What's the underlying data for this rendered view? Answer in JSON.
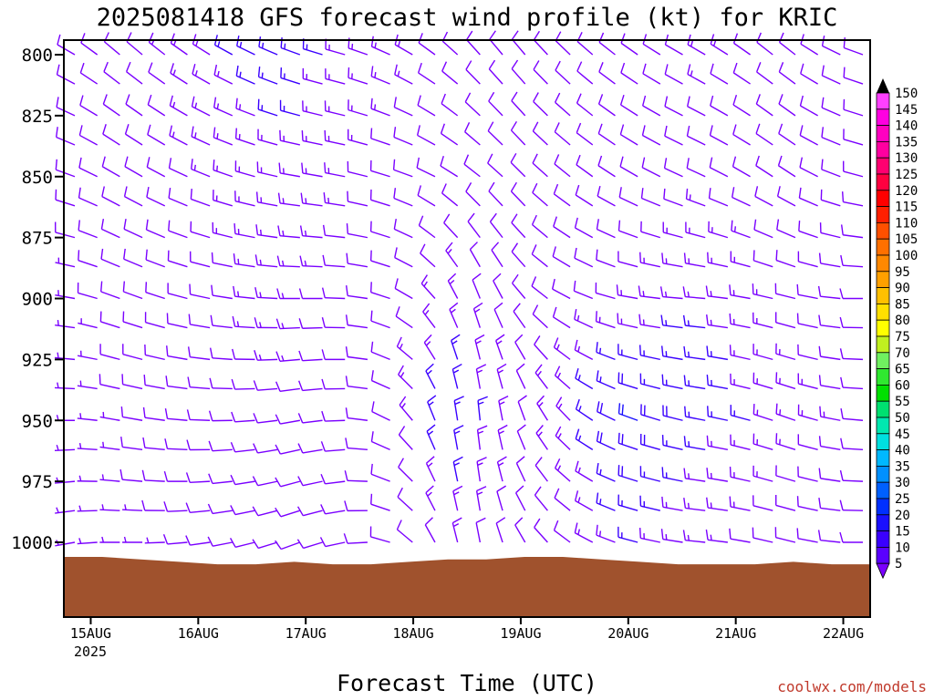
{
  "chart_data": {
    "type": "wind-barb time-height",
    "title": "2025081418 GFS forecast wind profile (kt) for KRIC",
    "xlabel": "Forecast Time (UTC)",
    "ylabel": "",
    "source": "coolwx.com/models",
    "x_start": "2025-08-14T18Z",
    "x_end": "2025-08-22T06Z",
    "x_ticks": [
      "15AUG",
      "16AUG",
      "17AUG",
      "18AUG",
      "19AUG",
      "20AUG",
      "21AUG",
      "22AUG"
    ],
    "x_year_label": "2025",
    "y_ticks": [
      800,
      825,
      850,
      875,
      900,
      925,
      950,
      975,
      1000
    ],
    "ylim": [
      1010,
      795
    ],
    "levels": [
      800,
      812,
      825,
      837,
      850,
      862,
      875,
      887,
      900,
      912,
      925,
      937,
      950,
      962,
      975,
      987,
      1000,
      1010
    ],
    "surface_pressure": [
      1006,
      1006,
      1007,
      1008,
      1009,
      1009,
      1008,
      1009,
      1009,
      1008,
      1007,
      1007,
      1006,
      1006,
      1007,
      1008,
      1009,
      1009,
      1009,
      1008,
      1009,
      1009
    ],
    "colorbar": {
      "labels": [
        "5",
        "10",
        "15",
        "20",
        "25",
        "30",
        "35",
        "40",
        "45",
        "50",
        "55",
        "60",
        "65",
        "70",
        "75",
        "80",
        "85",
        "90",
        "95",
        "100",
        "105",
        "110",
        "115",
        "120",
        "125",
        "130",
        "135",
        "140",
        "145",
        "150"
      ],
      "colors": [
        "#7a00ff",
        "#5a00ff",
        "#3a00ff",
        "#1a10ff",
        "#0030ff",
        "#0060ff",
        "#0090ff",
        "#00b8ff",
        "#00e0e0",
        "#00e8b0",
        "#00e070",
        "#00e000",
        "#30e830",
        "#70f060",
        "#c0f020",
        "#ffff00",
        "#ffe000",
        "#ffc000",
        "#ffa000",
        "#ff8800",
        "#ff7000",
        "#ff5000",
        "#ff2000",
        "#ff0000",
        "#ff0040",
        "#ff0070",
        "#ff00a0",
        "#ff00c0",
        "#ff00e0",
        "#ff40ff"
      ]
    },
    "series": [
      {
        "level": 800,
        "speed_kt": [
          8,
          10,
          12,
          14,
          15,
          16,
          16,
          15,
          14,
          13,
          12,
          12,
          11,
          10,
          10,
          11,
          12,
          13,
          12,
          11,
          10,
          9
        ],
        "direction_deg": [
          300,
          310,
          310,
          305,
          300,
          295,
          290,
          285,
          290,
          300,
          310,
          320,
          320,
          315,
          310,
          305,
          300,
          300,
          305,
          310,
          300,
          290
        ]
      },
      {
        "level": 850,
        "speed_kt": [
          8,
          9,
          11,
          12,
          13,
          14,
          14,
          13,
          12,
          11,
          10,
          10,
          10,
          9,
          9,
          10,
          11,
          12,
          11,
          10,
          9,
          9
        ],
        "direction_deg": [
          290,
          300,
          300,
          295,
          290,
          285,
          280,
          280,
          285,
          290,
          300,
          310,
          315,
          310,
          305,
          300,
          295,
          295,
          300,
          305,
          295,
          285
        ]
      },
      {
        "level": 900,
        "speed_kt": [
          7,
          8,
          10,
          11,
          12,
          13,
          13,
          12,
          11,
          12,
          14,
          12,
          10,
          11,
          12,
          13,
          14,
          15,
          14,
          12,
          11,
          10
        ],
        "direction_deg": [
          280,
          290,
          290,
          285,
          280,
          275,
          270,
          270,
          280,
          300,
          330,
          340,
          320,
          300,
          290,
          280,
          275,
          275,
          280,
          285,
          280,
          270
        ]
      },
      {
        "level": 950,
        "speed_kt": [
          6,
          7,
          9,
          10,
          11,
          12,
          12,
          11,
          10,
          13,
          18,
          15,
          12,
          14,
          18,
          20,
          18,
          16,
          15,
          14,
          13,
          12
        ],
        "direction_deg": [
          270,
          280,
          280,
          275,
          270,
          265,
          260,
          265,
          280,
          320,
          350,
          355,
          340,
          320,
          300,
          290,
          285,
          280,
          285,
          290,
          285,
          275
        ]
      },
      {
        "level": 1000,
        "speed_kt": [
          5,
          6,
          7,
          8,
          9,
          10,
          10,
          9,
          8,
          10,
          14,
          12,
          10,
          11,
          13,
          15,
          14,
          13,
          12,
          11,
          10,
          9
        ],
        "direction_deg": [
          260,
          270,
          270,
          265,
          260,
          255,
          250,
          255,
          270,
          310,
          345,
          350,
          330,
          310,
          295,
          285,
          280,
          275,
          280,
          285,
          280,
          270
        ]
      }
    ]
  }
}
